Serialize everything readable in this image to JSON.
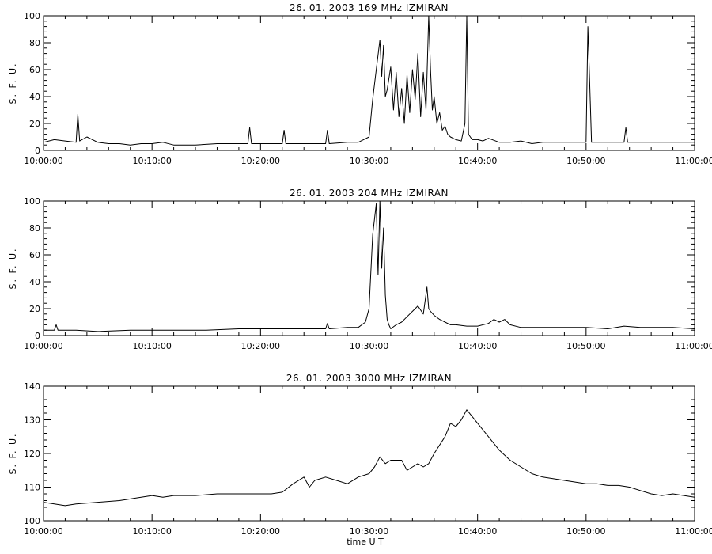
{
  "chart_data": [
    {
      "type": "line",
      "title": "26.  01.  2003    169 MHz     IZMIRAN",
      "ylabel": "S. F. U.",
      "xlabel": "",
      "xlim": [
        "10:00:00",
        "11:00:00"
      ],
      "ylim": [
        0,
        100
      ],
      "x_ticks": [
        "10:00:00",
        "10:10:00",
        "10:20:00",
        "10:30:00",
        "10:40:00",
        "10:50:00",
        "11:00:00"
      ],
      "y_ticks": [
        0,
        20,
        40,
        60,
        80,
        100
      ],
      "grid": false,
      "series": [
        {
          "x": [
            "10:00:00",
            "10:01:00",
            "10:02:00",
            "10:03:00",
            "10:03:10",
            "10:03:20",
            "10:04:00",
            "10:05:00",
            "10:06:00",
            "10:07:00",
            "10:08:00",
            "10:09:00",
            "10:10:00",
            "10:11:00",
            "10:12:00",
            "10:14:00",
            "10:16:00",
            "10:18:00",
            "10:18:50",
            "10:19:00",
            "10:19:10",
            "10:20:00",
            "10:21:00",
            "10:22:00",
            "10:22:10",
            "10:22:20",
            "10:24:00",
            "10:26:00",
            "10:26:10",
            "10:26:20",
            "10:28:00",
            "10:29:00",
            "10:29:30",
            "10:30:00",
            "10:30:20",
            "10:30:40",
            "10:31:00",
            "10:31:10",
            "10:31:20",
            "10:31:30",
            "10:31:40",
            "10:32:00",
            "10:32:15",
            "10:32:30",
            "10:32:45",
            "10:33:00",
            "10:33:15",
            "10:33:30",
            "10:33:45",
            "10:34:00",
            "10:34:15",
            "10:34:30",
            "10:34:45",
            "10:35:00",
            "10:35:15",
            "10:35:30",
            "10:35:40",
            "10:35:50",
            "10:36:00",
            "10:36:15",
            "10:36:30",
            "10:36:45",
            "10:37:00",
            "10:37:15",
            "10:37:30",
            "10:37:45",
            "10:38:00",
            "10:38:30",
            "10:38:50",
            "10:39:00",
            "10:39:10",
            "10:39:30",
            "10:40:00",
            "10:40:30",
            "10:41:00",
            "10:42:00",
            "10:43:00",
            "10:44:00",
            "10:45:00",
            "10:46:00",
            "10:48:00",
            "10:50:00",
            "10:50:10",
            "10:50:20",
            "10:50:30",
            "10:51:00",
            "10:52:00",
            "10:53:00",
            "10:53:30",
            "10:53:40",
            "10:53:50",
            "10:55:00",
            "10:57:00",
            "10:59:00",
            "11:00:00"
          ],
          "y": [
            6,
            8,
            7,
            6,
            27,
            7,
            10,
            6,
            5,
            5,
            4,
            5,
            5,
            6,
            4,
            4,
            5,
            5,
            5,
            17,
            5,
            5,
            5,
            5,
            15,
            5,
            5,
            5,
            15,
            5,
            6,
            6,
            8,
            10,
            38,
            60,
            82,
            55,
            78,
            40,
            45,
            62,
            30,
            58,
            25,
            46,
            20,
            56,
            28,
            60,
            38,
            72,
            25,
            58,
            30,
            100,
            60,
            30,
            40,
            20,
            28,
            15,
            18,
            12,
            10,
            9,
            8,
            7,
            20,
            100,
            12,
            8,
            8,
            7,
            9,
            6,
            6,
            7,
            5,
            6,
            6,
            6,
            92,
            50,
            6,
            6,
            6,
            6,
            6,
            17,
            6,
            6,
            6,
            6,
            6
          ]
        }
      ]
    },
    {
      "type": "line",
      "title": "26.  01.  2003    204 MHz     IZMIRAN",
      "ylabel": "S. F. U.",
      "xlabel": "",
      "xlim": [
        "10:00:00",
        "11:00:00"
      ],
      "ylim": [
        0,
        100
      ],
      "x_ticks": [
        "10:00:00",
        "10:10:00",
        "10:20:00",
        "10:30:00",
        "10:40:00",
        "10:50:00",
        "11:00:00"
      ],
      "y_ticks": [
        0,
        20,
        40,
        60,
        80,
        100
      ],
      "grid": false,
      "series": [
        {
          "x": [
            "10:00:00",
            "10:01:00",
            "10:01:10",
            "10:01:20",
            "10:03:00",
            "10:05:00",
            "10:08:00",
            "10:10:00",
            "10:12:00",
            "10:15:00",
            "10:18:00",
            "10:20:00",
            "10:22:00",
            "10:24:00",
            "10:26:00",
            "10:26:10",
            "10:26:20",
            "10:28:00",
            "10:29:00",
            "10:29:40",
            "10:30:00",
            "10:30:20",
            "10:30:40",
            "10:30:50",
            "10:31:00",
            "10:31:10",
            "10:31:20",
            "10:31:30",
            "10:31:40",
            "10:31:50",
            "10:32:00",
            "10:32:30",
            "10:33:00",
            "10:33:30",
            "10:34:00",
            "10:34:30",
            "10:35:00",
            "10:35:20",
            "10:35:30",
            "10:35:40",
            "10:36:00",
            "10:36:30",
            "10:37:00",
            "10:37:30",
            "10:38:00",
            "10:39:00",
            "10:40:00",
            "10:41:00",
            "10:41:30",
            "10:42:00",
            "10:42:30",
            "10:43:00",
            "10:44:00",
            "10:46:00",
            "10:48:00",
            "10:50:00",
            "10:52:00",
            "10:53:30",
            "10:55:00",
            "10:58:00",
            "11:00:00"
          ],
          "y": [
            4,
            4,
            8,
            4,
            4,
            3,
            4,
            4,
            4,
            4,
            5,
            5,
            5,
            5,
            5,
            9,
            5,
            6,
            6,
            10,
            20,
            75,
            98,
            45,
            100,
            50,
            80,
            30,
            12,
            8,
            5,
            8,
            10,
            14,
            18,
            22,
            16,
            36,
            20,
            18,
            15,
            12,
            10,
            8,
            8,
            7,
            7,
            9,
            12,
            10,
            12,
            8,
            6,
            6,
            6,
            6,
            5,
            7,
            6,
            6,
            5
          ]
        }
      ]
    },
    {
      "type": "line",
      "title": "26.  01.  2003    3000 MHz    IZMIRAN",
      "ylabel": "S. F. U.",
      "xlabel": "time  U T",
      "xlim": [
        "10:00:00",
        "11:00:00"
      ],
      "ylim": [
        100,
        140
      ],
      "x_ticks": [
        "10:00:00",
        "10:10:00",
        "10:20:00",
        "10:30:00",
        "10:40:00",
        "10:50:00",
        "11:00:00"
      ],
      "y_ticks": [
        100,
        110,
        120,
        130,
        140
      ],
      "grid": false,
      "series": [
        {
          "x": [
            "10:00:00",
            "10:01:00",
            "10:02:00",
            "10:03:00",
            "10:05:00",
            "10:07:00",
            "10:08:00",
            "10:09:00",
            "10:10:00",
            "10:11:00",
            "10:12:00",
            "10:14:00",
            "10:16:00",
            "10:18:00",
            "10:20:00",
            "10:21:00",
            "10:22:00",
            "10:23:00",
            "10:24:00",
            "10:24:30",
            "10:25:00",
            "10:26:00",
            "10:27:00",
            "10:28:00",
            "10:29:00",
            "10:30:00",
            "10:30:30",
            "10:31:00",
            "10:31:30",
            "10:32:00",
            "10:33:00",
            "10:33:30",
            "10:34:00",
            "10:34:30",
            "10:35:00",
            "10:35:30",
            "10:36:00",
            "10:37:00",
            "10:37:30",
            "10:38:00",
            "10:38:30",
            "10:39:00",
            "10:40:00",
            "10:41:00",
            "10:42:00",
            "10:43:00",
            "10:44:00",
            "10:45:00",
            "10:46:00",
            "10:48:00",
            "10:50:00",
            "10:51:00",
            "10:52:00",
            "10:53:00",
            "10:54:00",
            "10:55:00",
            "10:56:00",
            "10:57:00",
            "10:58:00",
            "10:59:00",
            "11:00:00"
          ],
          "y": [
            105.5,
            105,
            104.5,
            105,
            105.5,
            106,
            106.5,
            107,
            107.5,
            107,
            107.5,
            107.5,
            108,
            108,
            108,
            108,
            108.5,
            111,
            113,
            110,
            112,
            113,
            112,
            111,
            113,
            114,
            116,
            119,
            117,
            118,
            118,
            115,
            116,
            117,
            116,
            117,
            120,
            125,
            129,
            128,
            130,
            133,
            129,
            125,
            121,
            118,
            116,
            114,
            113,
            112,
            111,
            111,
            110.5,
            110.5,
            110,
            109,
            108,
            107.5,
            108,
            107.5,
            107
          ]
        }
      ]
    }
  ]
}
